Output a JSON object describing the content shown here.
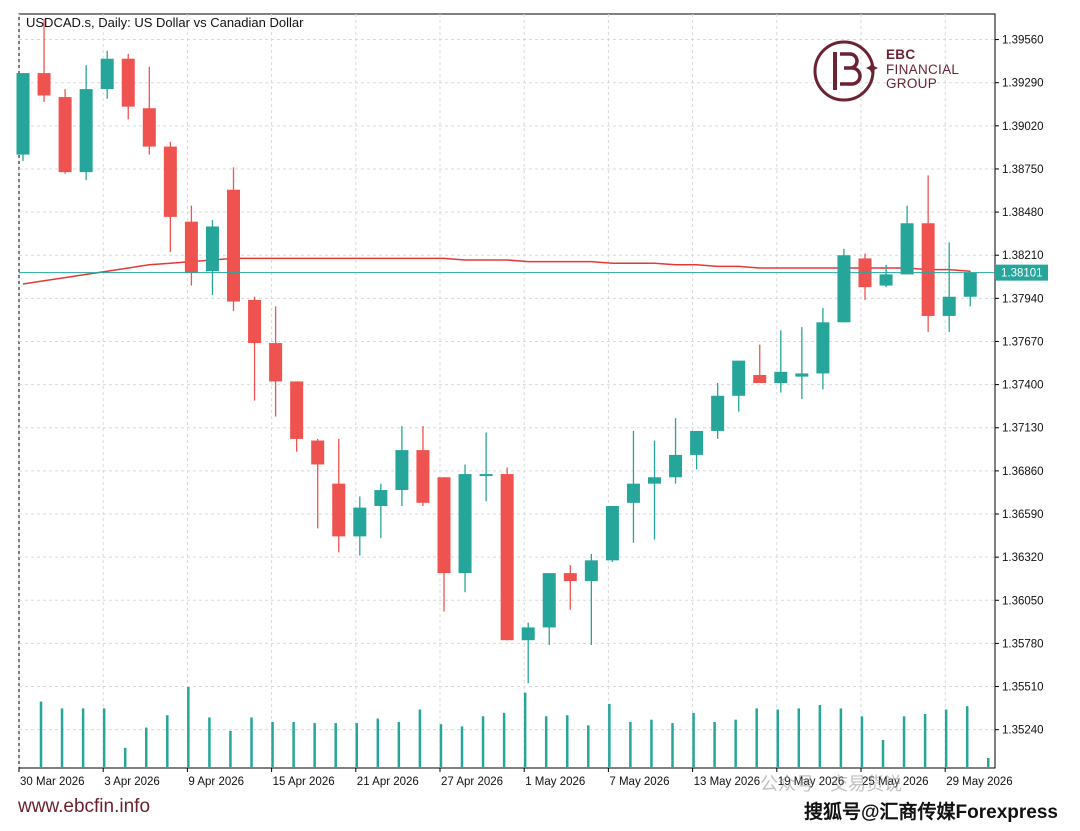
{
  "header": {
    "title": "USDCAD.s, Daily:  US Dollar vs Canadian Dollar"
  },
  "logo": {
    "line1": "EBC",
    "line2": "FINANCIAL",
    "line3": "GROUP",
    "color": "#6b2233"
  },
  "footer": {
    "website": "www.ebcfin.info",
    "source": "搜狐号@汇商传媒Forexpress",
    "watermark": "公众号 · 交易货说"
  },
  "colors": {
    "bull": "#26a69a",
    "bear": "#ef5350",
    "ma_line": "#e53935",
    "price_line": "#26a69a",
    "grid": "#d9d9d9",
    "volume": "#26a69a"
  },
  "chart_data": {
    "type": "candlestick",
    "symbol": "USDCAD.s",
    "timeframe": "Daily",
    "title": "USDCAD.s, Daily:  US Dollar vs Canadian Dollar",
    "current_price_label": "1.38101",
    "current_price": 1.38101,
    "ylim": [
      1.35,
      1.3972
    ],
    "y_ticks": [
      "1.39560",
      "1.39290",
      "1.39020",
      "1.38750",
      "1.38480",
      "1.38210",
      "1.37940",
      "1.37670",
      "1.37400",
      "1.37130",
      "1.36860",
      "1.36590",
      "1.36320",
      "1.36050",
      "1.35780",
      "1.35510",
      "1.35240"
    ],
    "x_ticks": [
      "30 Mar 2026",
      "3 Apr 2026",
      "9 Apr 2026",
      "15 Apr 2026",
      "21 Apr 2026",
      "27 Apr 2026",
      "1 May 2026",
      "7 May 2026",
      "13 May 2026",
      "19 May 2026",
      "25 May 2026",
      "29 May 2026"
    ],
    "grid": true,
    "candles": [
      {
        "o": 1.3884,
        "h": 1.3935,
        "l": 1.388,
        "c": 1.3935
      },
      {
        "o": 1.3935,
        "h": 1.3969,
        "l": 1.3917,
        "c": 1.3921
      },
      {
        "o": 1.392,
        "h": 1.3925,
        "l": 1.3872,
        "c": 1.3873
      },
      {
        "o": 1.3873,
        "h": 1.394,
        "l": 1.3868,
        "c": 1.3925
      },
      {
        "o": 1.3925,
        "h": 1.3949,
        "l": 1.3919,
        "c": 1.3944
      },
      {
        "o": 1.3944,
        "h": 1.3947,
        "l": 1.3906,
        "c": 1.3914
      },
      {
        "o": 1.3913,
        "h": 1.3939,
        "l": 1.3884,
        "c": 1.3889
      },
      {
        "o": 1.3889,
        "h": 1.3892,
        "l": 1.3823,
        "c": 1.3845
      },
      {
        "o": 1.3842,
        "h": 1.3852,
        "l": 1.3802,
        "c": 1.381
      },
      {
        "o": 1.3811,
        "h": 1.3843,
        "l": 1.3796,
        "c": 1.3839
      },
      {
        "o": 1.3862,
        "h": 1.3876,
        "l": 1.3786,
        "c": 1.3792
      },
      {
        "o": 1.3793,
        "h": 1.3795,
        "l": 1.373,
        "c": 1.3766
      },
      {
        "o": 1.3766,
        "h": 1.3789,
        "l": 1.372,
        "c": 1.3742
      },
      {
        "o": 1.3742,
        "h": 1.3742,
        "l": 1.3698,
        "c": 1.3706
      },
      {
        "o": 1.3705,
        "h": 1.3706,
        "l": 1.365,
        "c": 1.369
      },
      {
        "o": 1.3678,
        "h": 1.3706,
        "l": 1.3635,
        "c": 1.3645
      },
      {
        "o": 1.3645,
        "h": 1.367,
        "l": 1.3633,
        "c": 1.3663
      },
      {
        "o": 1.3664,
        "h": 1.3678,
        "l": 1.3644,
        "c": 1.3674
      },
      {
        "o": 1.3674,
        "h": 1.3714,
        "l": 1.3664,
        "c": 1.3699
      },
      {
        "o": 1.3699,
        "h": 1.3714,
        "l": 1.3664,
        "c": 1.3666
      },
      {
        "o": 1.3682,
        "h": 1.3682,
        "l": 1.3598,
        "c": 1.3622
      },
      {
        "o": 1.3622,
        "h": 1.369,
        "l": 1.361,
        "c": 1.3684
      },
      {
        "o": 1.3684,
        "h": 1.371,
        "l": 1.3667,
        "c": 1.3684
      },
      {
        "o": 1.3684,
        "h": 1.3688,
        "l": 1.358,
        "c": 1.358
      },
      {
        "o": 1.358,
        "h": 1.3591,
        "l": 1.3553,
        "c": 1.3588
      },
      {
        "o": 1.3588,
        "h": 1.3622,
        "l": 1.3577,
        "c": 1.3622
      },
      {
        "o": 1.3622,
        "h": 1.3627,
        "l": 1.3599,
        "c": 1.3617
      },
      {
        "o": 1.3617,
        "h": 1.3634,
        "l": 1.3577,
        "c": 1.363
      },
      {
        "o": 1.363,
        "h": 1.3664,
        "l": 1.3629,
        "c": 1.3664
      },
      {
        "o": 1.3666,
        "h": 1.3711,
        "l": 1.3641,
        "c": 1.3678
      },
      {
        "o": 1.3678,
        "h": 1.3705,
        "l": 1.3643,
        "c": 1.3682
      },
      {
        "o": 1.3682,
        "h": 1.3719,
        "l": 1.3678,
        "c": 1.3696
      },
      {
        "o": 1.3696,
        "h": 1.3711,
        "l": 1.3687,
        "c": 1.3711
      },
      {
        "o": 1.3711,
        "h": 1.3741,
        "l": 1.3706,
        "c": 1.3733
      },
      {
        "o": 1.3733,
        "h": 1.3755,
        "l": 1.3723,
        "c": 1.3755
      },
      {
        "o": 1.3746,
        "h": 1.3765,
        "l": 1.3743,
        "c": 1.3741
      },
      {
        "o": 1.3741,
        "h": 1.3774,
        "l": 1.3735,
        "c": 1.3748
      },
      {
        "o": 1.3745,
        "h": 1.3776,
        "l": 1.3731,
        "c": 1.3747
      },
      {
        "o": 1.3747,
        "h": 1.3788,
        "l": 1.3737,
        "c": 1.3779
      },
      {
        "o": 1.3779,
        "h": 1.3825,
        "l": 1.3779,
        "c": 1.3821
      },
      {
        "o": 1.3819,
        "h": 1.3822,
        "l": 1.3793,
        "c": 1.3801
      },
      {
        "o": 1.3802,
        "h": 1.3815,
        "l": 1.3801,
        "c": 1.3809
      },
      {
        "o": 1.3809,
        "h": 1.3852,
        "l": 1.3809,
        "c": 1.3841
      },
      {
        "o": 1.3841,
        "h": 1.3871,
        "l": 1.3773,
        "c": 1.3783
      },
      {
        "o": 1.3783,
        "h": 1.3829,
        "l": 1.3773,
        "c": 1.3795
      },
      {
        "o": 1.3795,
        "h": 1.3811,
        "l": 1.3789,
        "c": 1.381
      }
    ],
    "moving_average": [
      1.3803,
      1.3805,
      1.3807,
      1.3809,
      1.3811,
      1.3813,
      1.3815,
      1.3816,
      1.3817,
      1.3818,
      1.3819,
      1.3819,
      1.3819,
      1.3819,
      1.3819,
      1.3819,
      1.3819,
      1.3819,
      1.3819,
      1.3819,
      1.3819,
      1.3818,
      1.3818,
      1.3818,
      1.3817,
      1.3817,
      1.3817,
      1.3817,
      1.3816,
      1.3816,
      1.3816,
      1.3815,
      1.3815,
      1.3814,
      1.3814,
      1.3813,
      1.3813,
      1.3813,
      1.3813,
      1.3813,
      1.3813,
      1.3813,
      1.3813,
      1.3812,
      1.3812,
      1.3811
    ],
    "volume": [
      0.58,
      0.52,
      0.52,
      0.52,
      0.17,
      0.35,
      0.46,
      0.71,
      0.44,
      0.32,
      0.44,
      0.4,
      0.4,
      0.39,
      0.39,
      0.39,
      0.43,
      0.4,
      0.51,
      0.38,
      0.36,
      0.45,
      0.48,
      0.66,
      0.45,
      0.46,
      0.37,
      0.56,
      0.4,
      0.42,
      0.39,
      0.48,
      0.4,
      0.42,
      0.52,
      0.51,
      0.52,
      0.55,
      0.52,
      0.45,
      0.24,
      0.45,
      0.47,
      0.51,
      0.54,
      0.08
    ],
    "volume_max_height_fraction_note": "",
    "legend": "none"
  }
}
